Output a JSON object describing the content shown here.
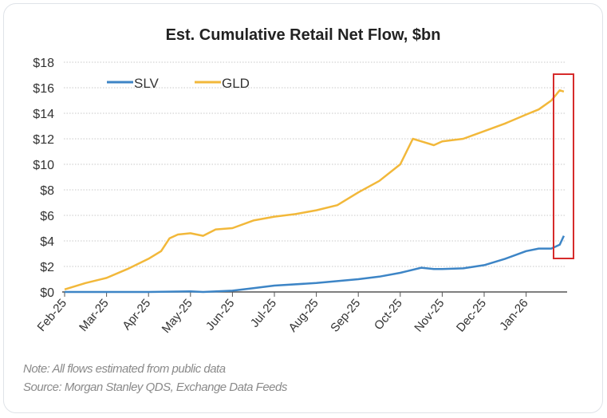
{
  "chart_data": {
    "type": "line",
    "title": "Est. Cumulative Retail Net Flow, $bn",
    "xlabel": "",
    "ylabel": "",
    "ylim": [
      0,
      18
    ],
    "y_ticks": [
      "$0",
      "$2",
      "$4",
      "$6",
      "$8",
      "$10",
      "$12",
      "$14",
      "$16",
      "$18"
    ],
    "x_ticks": [
      "Feb-25",
      "Mar-25",
      "Apr-25",
      "May-25",
      "Jun-25",
      "Jul-25",
      "Aug-25",
      "Sep-25",
      "Oct-25",
      "Nov-25",
      "Dec-25",
      "Jan-26"
    ],
    "x_unit": "months since Feb-25",
    "grid": "horizontal dotted",
    "legend_placement": "top-left",
    "series": [
      {
        "name": "SLV",
        "color": "#3d85c6",
        "x": [
          0,
          1,
          2,
          3,
          3.3,
          4,
          4.5,
          5,
          6,
          7,
          7.5,
          8,
          8.5,
          8.8,
          9,
          9.5,
          10,
          10.5,
          11,
          11.3,
          11.6,
          11.8,
          11.9
        ],
        "values": [
          0,
          0,
          0,
          0.05,
          0,
          0.1,
          0.3,
          0.5,
          0.7,
          1.0,
          1.2,
          1.5,
          1.9,
          1.8,
          1.8,
          1.85,
          2.1,
          2.6,
          3.2,
          3.4,
          3.4,
          3.7,
          4.4
        ]
      },
      {
        "name": "GLD",
        "color": "#f2b83a",
        "x": [
          0,
          0.5,
          1,
          1.5,
          2,
          2.3,
          2.5,
          2.7,
          3,
          3.3,
          3.6,
          4,
          4.5,
          5,
          5.5,
          6,
          6.5,
          7,
          7.5,
          8,
          8.3,
          8.5,
          8.8,
          9,
          9.5,
          10,
          10.5,
          11,
          11.3,
          11.6,
          11.8,
          11.9
        ],
        "values": [
          0.2,
          0.7,
          1.1,
          1.8,
          2.6,
          3.2,
          4.2,
          4.5,
          4.6,
          4.4,
          4.9,
          5.0,
          5.6,
          5.9,
          6.1,
          6.4,
          6.8,
          7.8,
          8.7,
          10.0,
          12.0,
          11.8,
          11.5,
          11.8,
          12.0,
          12.6,
          13.2,
          13.9,
          14.3,
          15.0,
          15.8,
          15.7
        ]
      }
    ],
    "highlight_box": "recent SLV/GLD end values (Jan-26)",
    "notes": [
      "Note:  All flows estimated from public data",
      "Source: Morgan Stanley QDS, Exchange Data Feeds"
    ]
  }
}
